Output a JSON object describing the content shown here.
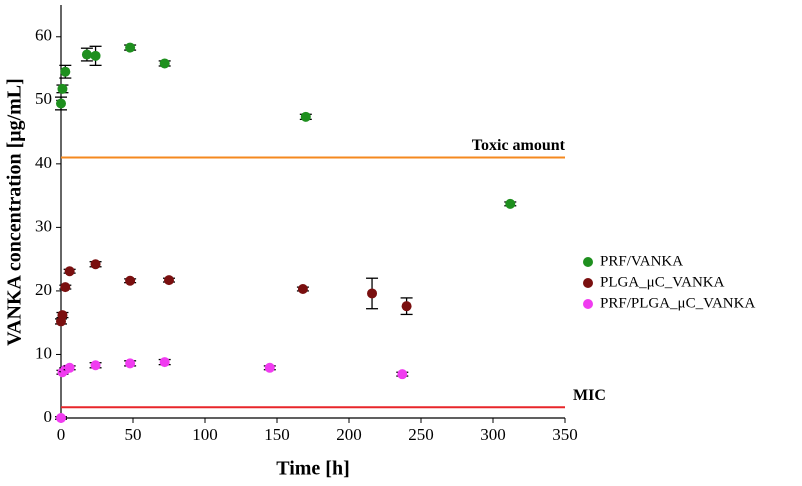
{
  "chart_data": {
    "type": "scatter",
    "x_label": "Time [h]",
    "y_label": "VANKA concentration [μg/mL]",
    "xlim": [
      0,
      350
    ],
    "ylim": [
      0,
      65
    ],
    "xticks": [
      0,
      50,
      100,
      150,
      200,
      250,
      300,
      350
    ],
    "yticks": [
      0,
      10,
      20,
      30,
      40,
      50,
      60
    ],
    "series": [
      {
        "name": "PRF/VANKA",
        "color": "#1e8f1e",
        "x": [
          0,
          1,
          3,
          18,
          24,
          48,
          72,
          170,
          312
        ],
        "values": [
          49.5,
          51.8,
          54.5,
          57.2,
          57,
          58.3,
          55.8,
          47.4,
          33.7
        ],
        "errors": [
          1,
          0.6,
          1,
          1,
          1.5,
          0.4,
          0.4,
          0.4,
          0.3
        ]
      },
      {
        "name": "PLGA_μC_VANKA",
        "color": "#7a0f0f",
        "x": [
          0,
          1,
          3,
          6,
          24,
          48,
          75,
          168,
          216,
          240
        ],
        "values": [
          15.2,
          16.2,
          20.6,
          23.1,
          24.2,
          21.6,
          21.7,
          20.3,
          19.6,
          17.6
        ],
        "errors": [
          0.4,
          0.4,
          0.3,
          0.3,
          0.4,
          0.3,
          0.3,
          0.3,
          2.4,
          1.3
        ]
      },
      {
        "name": "PRF/PLGA_μC_VANKA",
        "color": "#f03cf0",
        "x": [
          0,
          1,
          3,
          6,
          24,
          48,
          72,
          145,
          237
        ],
        "values": [
          0,
          7.2,
          7.6,
          7.9,
          8.3,
          8.6,
          8.8,
          7.9,
          6.9
        ],
        "errors": [
          0.2,
          0.3,
          0.3,
          0.3,
          0.4,
          0.4,
          0.4,
          0.3,
          0.3
        ]
      }
    ],
    "reference_lines": [
      {
        "label": "Toxic amount",
        "value": 41,
        "color": "#f5891f"
      },
      {
        "label": "MIC",
        "value": 1.7,
        "color": "#e8262a"
      }
    ]
  }
}
